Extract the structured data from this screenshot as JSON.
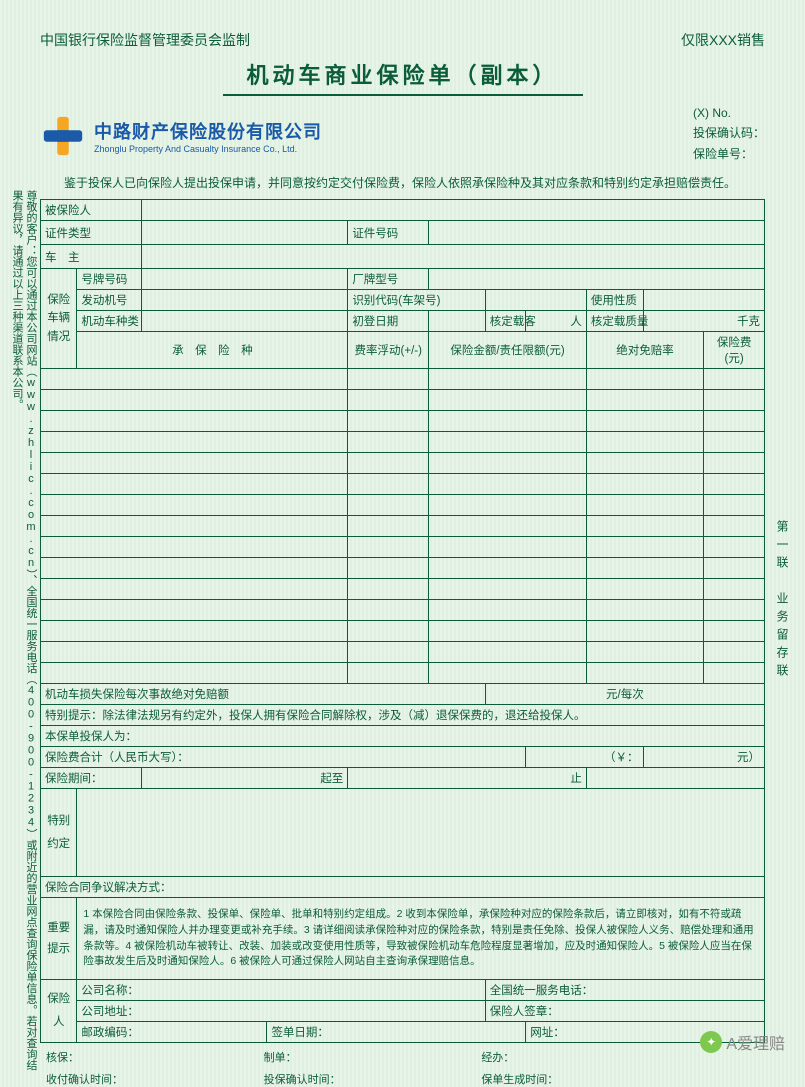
{
  "header": {
    "left": "中国银行保险监督管理委员会监制",
    "right": "仅限XXX销售",
    "title": "机动车商业保险单（副本）",
    "x_no": "(X) No.",
    "confirm_label": "投保确认码：",
    "policy_no_label": "保险单号：",
    "logo_cn": "中路财产保险股份有限公司",
    "logo_en": "Zhonglu Property And Casualty Insurance Co., Ltd.",
    "preamble": "鉴于投保人已向保险人提出投保申请，并同意按约定交付保险费，保险人依照承保险种及其对应条款和特别约定承担赔偿责任。"
  },
  "rows": {
    "insured": "被保险人",
    "id_type": "证件类型",
    "id_no": "证件号码",
    "owner": "车　主",
    "vehicle_group": "保险车辆情况",
    "plate": "号牌号码",
    "factory": "厂牌型号",
    "engine": "发动机号",
    "vin": "识别代码(车架号)",
    "use": "使用性质",
    "vtype": "机动车种类",
    "first_reg": "初登日期",
    "seats": "核定载客",
    "seats_unit": "人",
    "weight": "核定载质量",
    "weight_unit": "千克"
  },
  "coverage_head": {
    "c1": "承　保　险　种",
    "c2": "费率浮动(+/-)",
    "c3": "保险金额/责任限额(元)",
    "c4": "绝对免赔率",
    "c5": "保险费(元)"
  },
  "row_count": 15,
  "mid": {
    "deductible": "机动车损失保险每次事故绝对免赔额",
    "deductible_unit": "元/每次",
    "tip": "特别提示：除法律法规另有约定外，投保人拥有保险合同解除权，涉及（减）退保保费的，退还给投保人。",
    "applicant": "本保单投保人为：",
    "total": "保险费合计（人民币大写）：",
    "yen_l": "（￥：",
    "yen_r": "元）",
    "period": "保险期间：",
    "from": "起至",
    "to": "止"
  },
  "special": {
    "label": "特别约定",
    "dispute": "保险合同争议解决方式："
  },
  "notice": {
    "label": "重要提示",
    "text": "1 本保险合同由保险条款、投保单、保险单、批单和特别约定组成。2 收到本保险单，承保险种对应的保险条款后，请立即核对，如有不符或疏漏，请及时通知保险人并办理变更或补充手续。3 请详细阅读承保险种对应的保险条款，特别是责任免除、投保人被保险人义务、赔偿处理和通用条款等。4 被保险机动车被转让、改装、加装或改变使用性质等，导致被保险机动车危险程度显著增加，应及时通知保险人。5 被保险人应当在保险事故发生后及时通知保险人。6 被保险人可通过保险人网站自主查询承保理赔信息。"
  },
  "insurer": {
    "label": "保险人",
    "company": "公司名称：",
    "hotline": "全国统一服务电话：",
    "addr": "公司地址：",
    "sign": "保险人签章：",
    "zip": "邮政编码：",
    "issue_date": "签单日期：",
    "site": "网址："
  },
  "footer": {
    "a1": "核保：",
    "a2": "制单：",
    "a3": "经办：",
    "b1": "收付确认时间：",
    "b2": "投保确认时间：",
    "b3": "保单生成时间："
  },
  "side_left": "尊敬的客户：您可以通过本公司网站（www.zhlic.com.cn）、全国统一服务电话（400-900-1234）或附近的营业网点查询保险单信息。若对查询结果有异议，请通过以上三种渠道联系本公司。",
  "side_right": "第一联　业务留存联",
  "watermark": "A爱理赔",
  "colors": {
    "line": "#0a5c3a",
    "bg_light": "#e8f4e8",
    "logo_blue": "#1a5aa8",
    "logo_orange": "#f5a623"
  }
}
